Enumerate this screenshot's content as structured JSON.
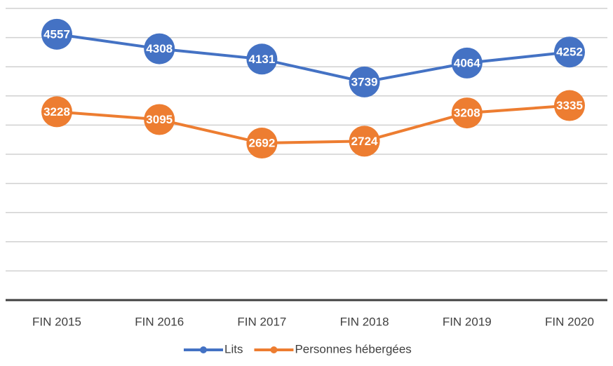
{
  "chart_data": {
    "type": "line",
    "categories": [
      "FIN 2015",
      "FIN 2016",
      "FIN 2017",
      "FIN 2018",
      "FIN 2019",
      "FIN 2020"
    ],
    "series": [
      {
        "name": "Lits",
        "color": "#4472c4",
        "values": [
          4557,
          4308,
          4131,
          3739,
          4064,
          4252
        ]
      },
      {
        "name": "Personnes hébergées",
        "color": "#ed7d31",
        "values": [
          3228,
          3095,
          2692,
          2724,
          3208,
          3335
        ]
      }
    ],
    "ylim": [
      0,
      5000
    ],
    "yticks": [
      0,
      500,
      1000,
      1500,
      2000,
      2500,
      3000,
      3500,
      4000,
      4500,
      5000
    ],
    "grid": true,
    "legend": "bottom"
  }
}
